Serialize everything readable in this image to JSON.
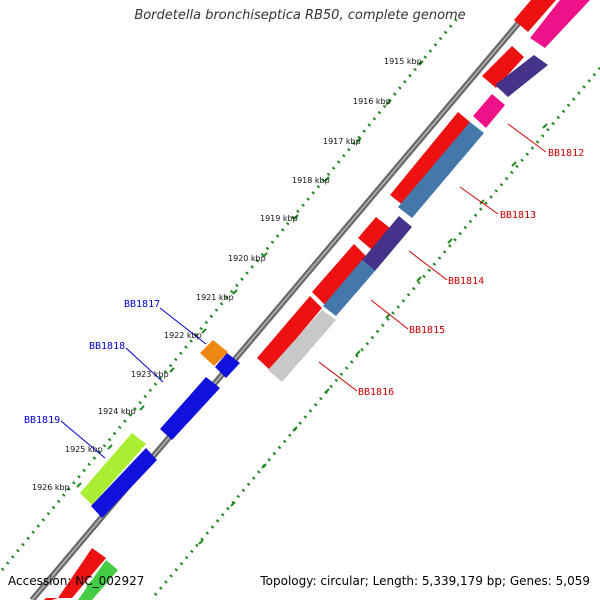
{
  "title": "Bordetella bronchiseptica RB50, complete genome",
  "accession_text": "Accession: NC_002927",
  "summary_text": "Topology: circular; Length: 5,339,179 bp; Genes: 5,059",
  "ticks": [
    "1915 kbp",
    "1916 kbp",
    "1917 kbp",
    "1918 kbp",
    "1919 kbp",
    "1920 kbp",
    "1921 kbp",
    "1922 kbp",
    "1923 kbp",
    "1924 kbp",
    "1925 kbp",
    "1926 kbp"
  ],
  "gene_labels": {
    "reverse_strand": [
      "BB1812",
      "BB1813",
      "BB1814",
      "BB1815",
      "BB1816"
    ],
    "forward_strand": [
      "BB1817",
      "BB1818",
      "BB1819"
    ]
  },
  "colors": {
    "red_label": "#cc0000",
    "blue_label": "#0000cc",
    "backbone": "#777777",
    "tick_dots": "#228822"
  }
}
